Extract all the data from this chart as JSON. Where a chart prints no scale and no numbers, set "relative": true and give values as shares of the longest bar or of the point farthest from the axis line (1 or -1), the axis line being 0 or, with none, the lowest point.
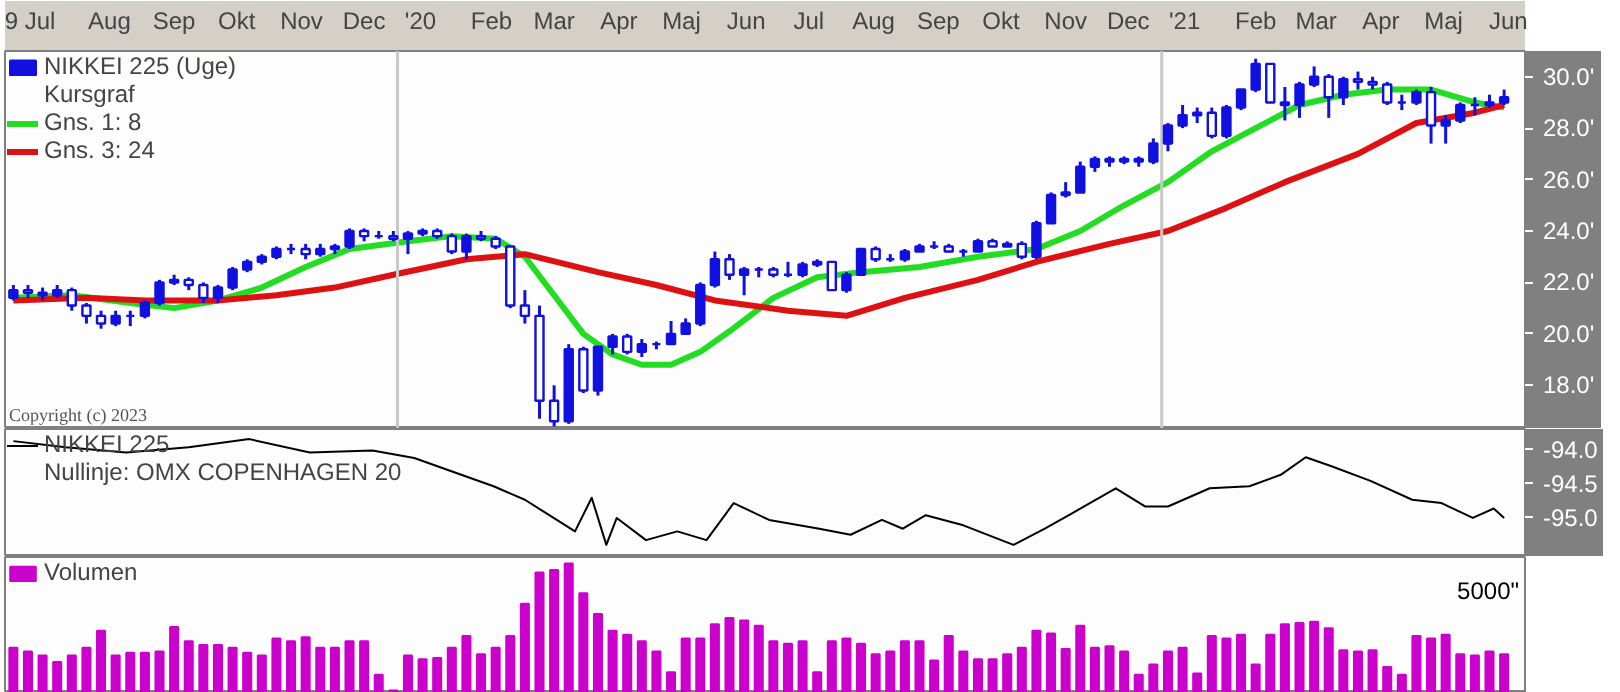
{
  "chart_data": [
    {
      "type": "candlestick",
      "xlim": [
        "2019-06-27",
        "2021-06-24"
      ],
      "ylim": [
        16.3,
        31.0
      ],
      "xticks": [
        {
          "value": "2019-07-09",
          "label": "9 Jul"
        },
        {
          "value": "2019-08-16",
          "label": "Aug"
        },
        {
          "value": "2019-09-16",
          "label": "Sep"
        },
        {
          "value": "2019-10-16",
          "label": "Okt"
        },
        {
          "value": "2019-11-16",
          "label": "Nov"
        },
        {
          "value": "2019-12-16",
          "label": "Dec"
        },
        {
          "value": "2020-01-12",
          "label": "'20"
        },
        {
          "value": "2020-02-15",
          "label": "Feb"
        },
        {
          "value": "2020-03-16",
          "label": "Mar"
        },
        {
          "value": "2020-04-16",
          "label": "Apr"
        },
        {
          "value": "2020-05-16",
          "label": "Maj"
        },
        {
          "value": "2020-06-16",
          "label": "Jun"
        },
        {
          "value": "2020-07-16",
          "label": "Jul"
        },
        {
          "value": "2020-08-16",
          "label": "Aug"
        },
        {
          "value": "2020-09-16",
          "label": "Sep"
        },
        {
          "value": "2020-10-16",
          "label": "Okt"
        },
        {
          "value": "2020-11-16",
          "label": "Nov"
        },
        {
          "value": "2020-12-16",
          "label": "Dec"
        },
        {
          "value": "2021-01-12",
          "label": "'21"
        },
        {
          "value": "2021-02-15",
          "label": "Feb"
        },
        {
          "value": "2021-03-16",
          "label": "Mar"
        },
        {
          "value": "2021-04-16",
          "label": "Apr"
        },
        {
          "value": "2021-05-16",
          "label": "Maj"
        },
        {
          "value": "2021-06-16",
          "label": "Jun"
        }
      ],
      "yticks": [
        {
          "value": 18,
          "label": "18.0'"
        },
        {
          "value": 20,
          "label": "20.0'"
        },
        {
          "value": 22,
          "label": "22.0'"
        },
        {
          "value": 24,
          "label": "24.0'"
        },
        {
          "value": 26,
          "label": "26.0'"
        },
        {
          "value": 28,
          "label": "28.0'"
        },
        {
          "value": 30,
          "label": "30.0'"
        }
      ],
      "legend": "top left",
      "annotations": [
        "Kursgraf",
        "Copyright (c) 2023"
      ],
      "ref_lines": [
        {
          "axis": "x",
          "value": "2020-01-01",
          "color": "#c8c8c8"
        },
        {
          "axis": "x",
          "value": "2021-01-01",
          "color": "#c8c8c8"
        }
      ],
      "series": [
        {
          "name": "NIKKEI 225 (Uge)",
          "type": "candlestick",
          "color": "#1010e0",
          "x": [
            "2019-07-01",
            "2019-07-08",
            "2019-07-15",
            "2019-07-22",
            "2019-07-29",
            "2019-08-05",
            "2019-08-12",
            "2019-08-19",
            "2019-08-26",
            "2019-09-02",
            "2019-09-09",
            "2019-09-16",
            "2019-09-23",
            "2019-09-30",
            "2019-10-07",
            "2019-10-14",
            "2019-10-21",
            "2019-10-28",
            "2019-11-04",
            "2019-11-11",
            "2019-11-18",
            "2019-11-25",
            "2019-12-02",
            "2019-12-09",
            "2019-12-16",
            "2019-12-23",
            "2019-12-30",
            "2020-01-06",
            "2020-01-13",
            "2020-01-20",
            "2020-01-27",
            "2020-02-03",
            "2020-02-10",
            "2020-02-17",
            "2020-02-24",
            "2020-03-02",
            "2020-03-09",
            "2020-03-16",
            "2020-03-23",
            "2020-03-30",
            "2020-04-06",
            "2020-04-13",
            "2020-04-20",
            "2020-04-27",
            "2020-05-04",
            "2020-05-11",
            "2020-05-18",
            "2020-05-25",
            "2020-06-01",
            "2020-06-08",
            "2020-06-15",
            "2020-06-22",
            "2020-06-29",
            "2020-07-06",
            "2020-07-13",
            "2020-07-20",
            "2020-07-27",
            "2020-08-03",
            "2020-08-10",
            "2020-08-17",
            "2020-08-24",
            "2020-08-31",
            "2020-09-07",
            "2020-09-14",
            "2020-09-21",
            "2020-09-28",
            "2020-10-05",
            "2020-10-12",
            "2020-10-19",
            "2020-10-26",
            "2020-11-02",
            "2020-11-09",
            "2020-11-16",
            "2020-11-23",
            "2020-11-30",
            "2020-12-07",
            "2020-12-14",
            "2020-12-21",
            "2020-12-28",
            "2021-01-04",
            "2021-01-11",
            "2021-01-18",
            "2021-01-25",
            "2021-02-01",
            "2021-02-08",
            "2021-02-15",
            "2021-02-22",
            "2021-03-01",
            "2021-03-08",
            "2021-03-15",
            "2021-03-22",
            "2021-03-29",
            "2021-04-05",
            "2021-04-12",
            "2021-04-19",
            "2021-04-26",
            "2021-05-03",
            "2021-05-10",
            "2021-05-17",
            "2021-05-24",
            "2021-05-31",
            "2021-06-07",
            "2021-06-14"
          ],
          "ohlc": [
            [
              21.4,
              21.9,
              21.3,
              21.7
            ],
            [
              21.7,
              21.9,
              21.4,
              21.6
            ],
            [
              21.6,
              21.8,
              21.3,
              21.5
            ],
            [
              21.5,
              21.9,
              21.4,
              21.7
            ],
            [
              21.7,
              21.8,
              20.9,
              21.1
            ],
            [
              21.1,
              21.2,
              20.4,
              20.7
            ],
            [
              20.7,
              20.9,
              20.2,
              20.4
            ],
            [
              20.4,
              20.9,
              20.3,
              20.7
            ],
            [
              20.7,
              20.9,
              20.3,
              20.7
            ],
            [
              20.7,
              21.3,
              20.6,
              21.2
            ],
            [
              21.2,
              22.1,
              21.1,
              22.0
            ],
            [
              22.0,
              22.3,
              21.9,
              22.1
            ],
            [
              22.1,
              22.2,
              21.7,
              21.9
            ],
            [
              21.9,
              22.0,
              21.2,
              21.4
            ],
            [
              21.4,
              21.9,
              21.2,
              21.8
            ],
            [
              21.8,
              22.6,
              21.7,
              22.5
            ],
            [
              22.5,
              22.9,
              22.4,
              22.8
            ],
            [
              22.8,
              23.1,
              22.7,
              23.0
            ],
            [
              23.0,
              23.4,
              22.9,
              23.3
            ],
            [
              23.3,
              23.5,
              23.1,
              23.3
            ],
            [
              23.3,
              23.5,
              22.9,
              23.1
            ],
            [
              23.1,
              23.5,
              23.0,
              23.3
            ],
            [
              23.3,
              23.5,
              23.1,
              23.4
            ],
            [
              23.4,
              24.1,
              23.3,
              24.0
            ],
            [
              24.0,
              24.1,
              23.6,
              23.8
            ],
            [
              23.8,
              24.0,
              23.7,
              23.8
            ],
            [
              23.8,
              24.0,
              23.6,
              23.7
            ],
            [
              23.7,
              24.0,
              23.1,
              23.9
            ],
            [
              23.9,
              24.1,
              23.8,
              24.0
            ],
            [
              24.0,
              24.1,
              23.7,
              23.8
            ],
            [
              23.8,
              23.9,
              23.1,
              23.2
            ],
            [
              23.2,
              23.9,
              22.9,
              23.8
            ],
            [
              23.8,
              24.0,
              23.6,
              23.7
            ],
            [
              23.7,
              23.8,
              23.3,
              23.4
            ],
            [
              23.4,
              23.4,
              21.0,
              21.1
            ],
            [
              21.1,
              21.7,
              20.4,
              20.7
            ],
            [
              20.7,
              21.1,
              16.7,
              17.4
            ],
            [
              17.4,
              18.0,
              16.4,
              16.6
            ],
            [
              16.6,
              19.6,
              16.5,
              19.4
            ],
            [
              19.4,
              19.5,
              17.7,
              17.8
            ],
            [
              17.8,
              19.5,
              17.6,
              19.5
            ],
            [
              19.5,
              20.0,
              19.2,
              19.9
            ],
            [
              19.9,
              20.0,
              19.2,
              19.3
            ],
            [
              19.3,
              19.8,
              19.1,
              19.6
            ],
            [
              19.6,
              19.7,
              19.4,
              19.6
            ],
            [
              19.6,
              20.5,
              19.6,
              20.0
            ],
            [
              20.0,
              20.6,
              20.0,
              20.4
            ],
            [
              20.4,
              22.0,
              20.3,
              21.9
            ],
            [
              21.9,
              23.2,
              21.8,
              22.9
            ],
            [
              22.9,
              23.1,
              22.1,
              22.3
            ],
            [
              22.3,
              22.6,
              21.5,
              22.5
            ],
            [
              22.5,
              22.6,
              22.2,
              22.5
            ],
            [
              22.5,
              22.6,
              22.2,
              22.3
            ],
            [
              22.3,
              22.8,
              22.2,
              22.3
            ],
            [
              22.3,
              22.8,
              22.2,
              22.7
            ],
            [
              22.7,
              22.9,
              22.6,
              22.8
            ],
            [
              22.8,
              22.8,
              21.7,
              21.7
            ],
            [
              21.7,
              22.4,
              21.6,
              22.3
            ],
            [
              22.3,
              23.3,
              22.3,
              23.3
            ],
            [
              23.3,
              23.4,
              22.8,
              22.9
            ],
            [
              22.9,
              23.1,
              22.8,
              22.9
            ],
            [
              22.9,
              23.3,
              22.8,
              23.2
            ],
            [
              23.2,
              23.5,
              23.2,
              23.4
            ],
            [
              23.4,
              23.6,
              23.3,
              23.4
            ],
            [
              23.4,
              23.5,
              23.2,
              23.2
            ],
            [
              23.2,
              23.3,
              23.0,
              23.2
            ],
            [
              23.2,
              23.7,
              23.2,
              23.6
            ],
            [
              23.6,
              23.7,
              23.4,
              23.4
            ],
            [
              23.4,
              23.6,
              23.4,
              23.5
            ],
            [
              23.5,
              23.6,
              22.9,
              23.0
            ],
            [
              23.0,
              24.4,
              22.9,
              24.3
            ],
            [
              24.3,
              25.5,
              24.3,
              25.4
            ],
            [
              25.4,
              25.9,
              25.3,
              25.5
            ],
            [
              25.5,
              26.7,
              25.5,
              26.5
            ],
            [
              26.5,
              26.9,
              26.3,
              26.8
            ],
            [
              26.8,
              26.9,
              26.5,
              26.7
            ],
            [
              26.7,
              26.9,
              26.6,
              26.8
            ],
            [
              26.8,
              26.9,
              26.5,
              26.7
            ],
            [
              26.7,
              27.6,
              26.6,
              27.4
            ],
            [
              27.4,
              28.2,
              27.1,
              28.1
            ],
            [
              28.1,
              28.9,
              28.0,
              28.5
            ],
            [
              28.5,
              28.8,
              28.2,
              28.6
            ],
            [
              28.6,
              28.8,
              27.6,
              27.7
            ],
            [
              27.7,
              28.9,
              27.6,
              28.8
            ],
            [
              28.8,
              29.5,
              28.7,
              29.5
            ],
            [
              29.5,
              30.7,
              29.4,
              30.5
            ],
            [
              30.5,
              30.5,
              29.0,
              29.0
            ],
            [
              29.0,
              29.6,
              28.3,
              28.9
            ],
            [
              28.9,
              29.8,
              28.4,
              29.7
            ],
            [
              29.7,
              30.4,
              29.6,
              30.0
            ],
            [
              30.0,
              30.1,
              28.4,
              29.2
            ],
            [
              29.2,
              30.0,
              28.9,
              29.9
            ],
            [
              29.9,
              30.2,
              29.5,
              29.8
            ],
            [
              29.8,
              30.0,
              29.5,
              29.7
            ],
            [
              29.7,
              29.8,
              28.9,
              29.0
            ],
            [
              29.0,
              29.3,
              28.7,
              29.0
            ],
            [
              29.0,
              29.5,
              28.9,
              29.4
            ],
            [
              29.4,
              29.6,
              27.4,
              28.1
            ],
            [
              28.1,
              28.5,
              27.4,
              28.3
            ],
            [
              28.3,
              29.0,
              28.2,
              28.9
            ],
            [
              28.9,
              29.2,
              28.5,
              28.9
            ],
            [
              28.9,
              29.3,
              28.8,
              29.0
            ],
            [
              29.0,
              29.5,
              28.9,
              29.2
            ]
          ]
        },
        {
          "name": "Gns. 1: 8",
          "type": "line",
          "color": "#22dd22",
          "x": [
            "2019-07-01",
            "2019-07-29",
            "2019-08-26",
            "2019-09-16",
            "2019-10-07",
            "2019-10-28",
            "2019-11-18",
            "2019-12-09",
            "2020-01-06",
            "2020-01-27",
            "2020-02-17",
            "2020-03-02",
            "2020-03-16",
            "2020-03-30",
            "2020-04-13",
            "2020-04-27",
            "2020-05-11",
            "2020-05-25",
            "2020-06-08",
            "2020-06-29",
            "2020-07-20",
            "2020-08-10",
            "2020-09-07",
            "2020-10-05",
            "2020-11-02",
            "2020-11-23",
            "2020-12-14",
            "2021-01-04",
            "2021-01-25",
            "2021-02-15",
            "2021-03-08",
            "2021-03-29",
            "2021-04-19",
            "2021-05-10",
            "2021-05-31",
            "2021-06-14"
          ],
          "values": [
            21.4,
            21.5,
            21.2,
            21.0,
            21.3,
            21.8,
            22.6,
            23.3,
            23.6,
            23.8,
            23.7,
            23.0,
            21.5,
            20.0,
            19.2,
            18.8,
            18.8,
            19.3,
            20.1,
            21.4,
            22.2,
            22.4,
            22.6,
            23.0,
            23.3,
            24.0,
            25.0,
            25.9,
            27.1,
            28.0,
            28.9,
            29.3,
            29.5,
            29.5,
            29.0,
            28.8
          ]
        },
        {
          "name": "Gns. 3: 24",
          "type": "line",
          "color": "#dd1111",
          "x": [
            "2019-07-01",
            "2019-08-05",
            "2019-09-02",
            "2019-10-07",
            "2019-11-04",
            "2019-12-02",
            "2019-12-30",
            "2020-02-03",
            "2020-03-02",
            "2020-04-06",
            "2020-05-04",
            "2020-06-01",
            "2020-07-06",
            "2020-08-03",
            "2020-08-31",
            "2020-10-05",
            "2020-11-02",
            "2020-12-07",
            "2021-01-04",
            "2021-02-01",
            "2021-03-01",
            "2021-04-05",
            "2021-05-03",
            "2021-05-31",
            "2021-06-14"
          ],
          "values": [
            21.3,
            21.4,
            21.3,
            21.3,
            21.5,
            21.8,
            22.3,
            22.9,
            23.1,
            22.4,
            21.9,
            21.3,
            20.9,
            20.7,
            21.4,
            22.1,
            22.8,
            23.5,
            24.0,
            24.9,
            25.9,
            27.0,
            28.2,
            28.6,
            28.9
          ]
        }
      ]
    },
    {
      "type": "line",
      "xlim": [
        "2019-06-27",
        "2021-06-24"
      ],
      "ylim": [
        -95.6,
        -93.7
      ],
      "tick_labels": "y",
      "yticks": [
        {
          "value": -94.0,
          "label": "-94.0"
        },
        {
          "value": -94.5,
          "label": "-94.5"
        },
        {
          "value": -95.0,
          "label": "-95.0"
        }
      ],
      "legend": "top left",
      "annotations": [
        "Nullinje: OMX COPENHAGEN 20"
      ],
      "series": [
        {
          "name": "NIKKEI 225",
          "color": "#000000",
          "x": [
            "2019-07-01",
            "2019-07-26",
            "2019-08-24",
            "2019-09-23",
            "2019-10-22",
            "2019-11-20",
            "2019-12-20",
            "2020-01-09",
            "2020-02-16",
            "2020-03-02",
            "2020-03-26",
            "2020-04-03",
            "2020-04-10",
            "2020-04-15",
            "2020-04-29",
            "2020-05-14",
            "2020-05-28",
            "2020-06-10",
            "2020-06-27",
            "2020-07-21",
            "2020-08-05",
            "2020-08-20",
            "2020-08-30",
            "2020-09-10",
            "2020-09-28",
            "2020-10-22",
            "2020-11-06",
            "2020-11-18",
            "2020-12-10",
            "2020-12-24",
            "2021-01-04",
            "2021-01-24",
            "2021-02-12",
            "2021-02-27",
            "2021-03-11",
            "2021-03-23",
            "2021-04-11",
            "2021-05-01",
            "2021-05-15",
            "2021-05-30",
            "2021-06-09",
            "2021-06-14"
          ],
          "values": [
            -93.88,
            -93.97,
            -94.05,
            -93.97,
            -93.85,
            -94.05,
            -94.02,
            -94.13,
            -94.55,
            -94.75,
            -95.22,
            -94.72,
            -95.42,
            -95.02,
            -95.35,
            -95.22,
            -95.35,
            -94.8,
            -95.05,
            -95.18,
            -95.27,
            -95.05,
            -95.18,
            -94.98,
            -95.13,
            -95.42,
            -95.18,
            -94.97,
            -94.58,
            -94.85,
            -94.85,
            -94.58,
            -94.55,
            -94.38,
            -94.12,
            -94.25,
            -94.47,
            -94.75,
            -94.8,
            -95.02,
            -94.88,
            -95.02
          ]
        }
      ]
    },
    {
      "type": "bar",
      "relative": true,
      "xlim": [
        "2019-06-27",
        "2021-06-24"
      ],
      "tick_labels": false,
      "legend": "top left",
      "annotations": [
        "5000\""
      ],
      "x": [
        "2019-07-01",
        "2019-07-08",
        "2019-07-15",
        "2019-07-22",
        "2019-07-29",
        "2019-08-05",
        "2019-08-12",
        "2019-08-19",
        "2019-08-26",
        "2019-09-02",
        "2019-09-09",
        "2019-09-16",
        "2019-09-23",
        "2019-09-30",
        "2019-10-07",
        "2019-10-14",
        "2019-10-21",
        "2019-10-28",
        "2019-11-04",
        "2019-11-11",
        "2019-11-18",
        "2019-11-25",
        "2019-12-02",
        "2019-12-09",
        "2019-12-16",
        "2019-12-23",
        "2019-12-30",
        "2020-01-06",
        "2020-01-13",
        "2020-01-20",
        "2020-01-27",
        "2020-02-03",
        "2020-02-10",
        "2020-02-17",
        "2020-02-24",
        "2020-03-02",
        "2020-03-09",
        "2020-03-16",
        "2020-03-23",
        "2020-03-30",
        "2020-04-06",
        "2020-04-13",
        "2020-04-20",
        "2020-04-27",
        "2020-05-04",
        "2020-05-11",
        "2020-05-18",
        "2020-05-25",
        "2020-06-01",
        "2020-06-08",
        "2020-06-15",
        "2020-06-22",
        "2020-06-29",
        "2020-07-06",
        "2020-07-13",
        "2020-07-20",
        "2020-07-27",
        "2020-08-03",
        "2020-08-10",
        "2020-08-17",
        "2020-08-24",
        "2020-08-31",
        "2020-09-07",
        "2020-09-14",
        "2020-09-21",
        "2020-09-28",
        "2020-10-05",
        "2020-10-12",
        "2020-10-19",
        "2020-10-26",
        "2020-11-02",
        "2020-11-09",
        "2020-11-16",
        "2020-11-23",
        "2020-11-30",
        "2020-12-07",
        "2020-12-14",
        "2020-12-21",
        "2020-12-28",
        "2021-01-04",
        "2021-01-11",
        "2021-01-18",
        "2021-01-25",
        "2021-02-01",
        "2021-02-08",
        "2021-02-15",
        "2021-02-22",
        "2021-03-01",
        "2021-03-08",
        "2021-03-15",
        "2021-03-22",
        "2021-03-29",
        "2021-04-05",
        "2021-04-12",
        "2021-04-19",
        "2021-04-26",
        "2021-05-03",
        "2021-05-10",
        "2021-05-17",
        "2021-05-24",
        "2021-05-31",
        "2021-06-07",
        "2021-06-14"
      ],
      "series": [
        {
          "name": "Volumen",
          "color": "#cc00cc",
          "values": [
            0.35,
            0.32,
            0.29,
            0.24,
            0.29,
            0.35,
            0.48,
            0.29,
            0.31,
            0.31,
            0.32,
            0.51,
            0.4,
            0.37,
            0.37,
            0.35,
            0.31,
            0.29,
            0.42,
            0.4,
            0.43,
            0.35,
            0.35,
            0.4,
            0.4,
            0.14,
            0.02,
            0.29,
            0.26,
            0.27,
            0.35,
            0.44,
            0.3,
            0.35,
            0.44,
            0.69,
            0.93,
            0.95,
            1.0,
            0.77,
            0.61,
            0.48,
            0.45,
            0.4,
            0.32,
            0.16,
            0.42,
            0.42,
            0.53,
            0.58,
            0.56,
            0.52,
            0.4,
            0.38,
            0.4,
            0.16,
            0.4,
            0.42,
            0.38,
            0.3,
            0.32,
            0.4,
            0.4,
            0.25,
            0.44,
            0.32,
            0.26,
            0.26,
            0.3,
            0.35,
            0.48,
            0.46,
            0.34,
            0.52,
            0.35,
            0.36,
            0.32,
            0.14,
            0.22,
            0.32,
            0.35,
            0.15,
            0.44,
            0.42,
            0.45,
            0.22,
            0.45,
            0.53,
            0.54,
            0.55,
            0.5,
            0.33,
            0.32,
            0.33,
            0.2,
            0.14,
            0.44,
            0.42,
            0.45,
            0.3,
            0.29,
            0.32,
            0.3
          ]
        }
      ]
    }
  ]
}
